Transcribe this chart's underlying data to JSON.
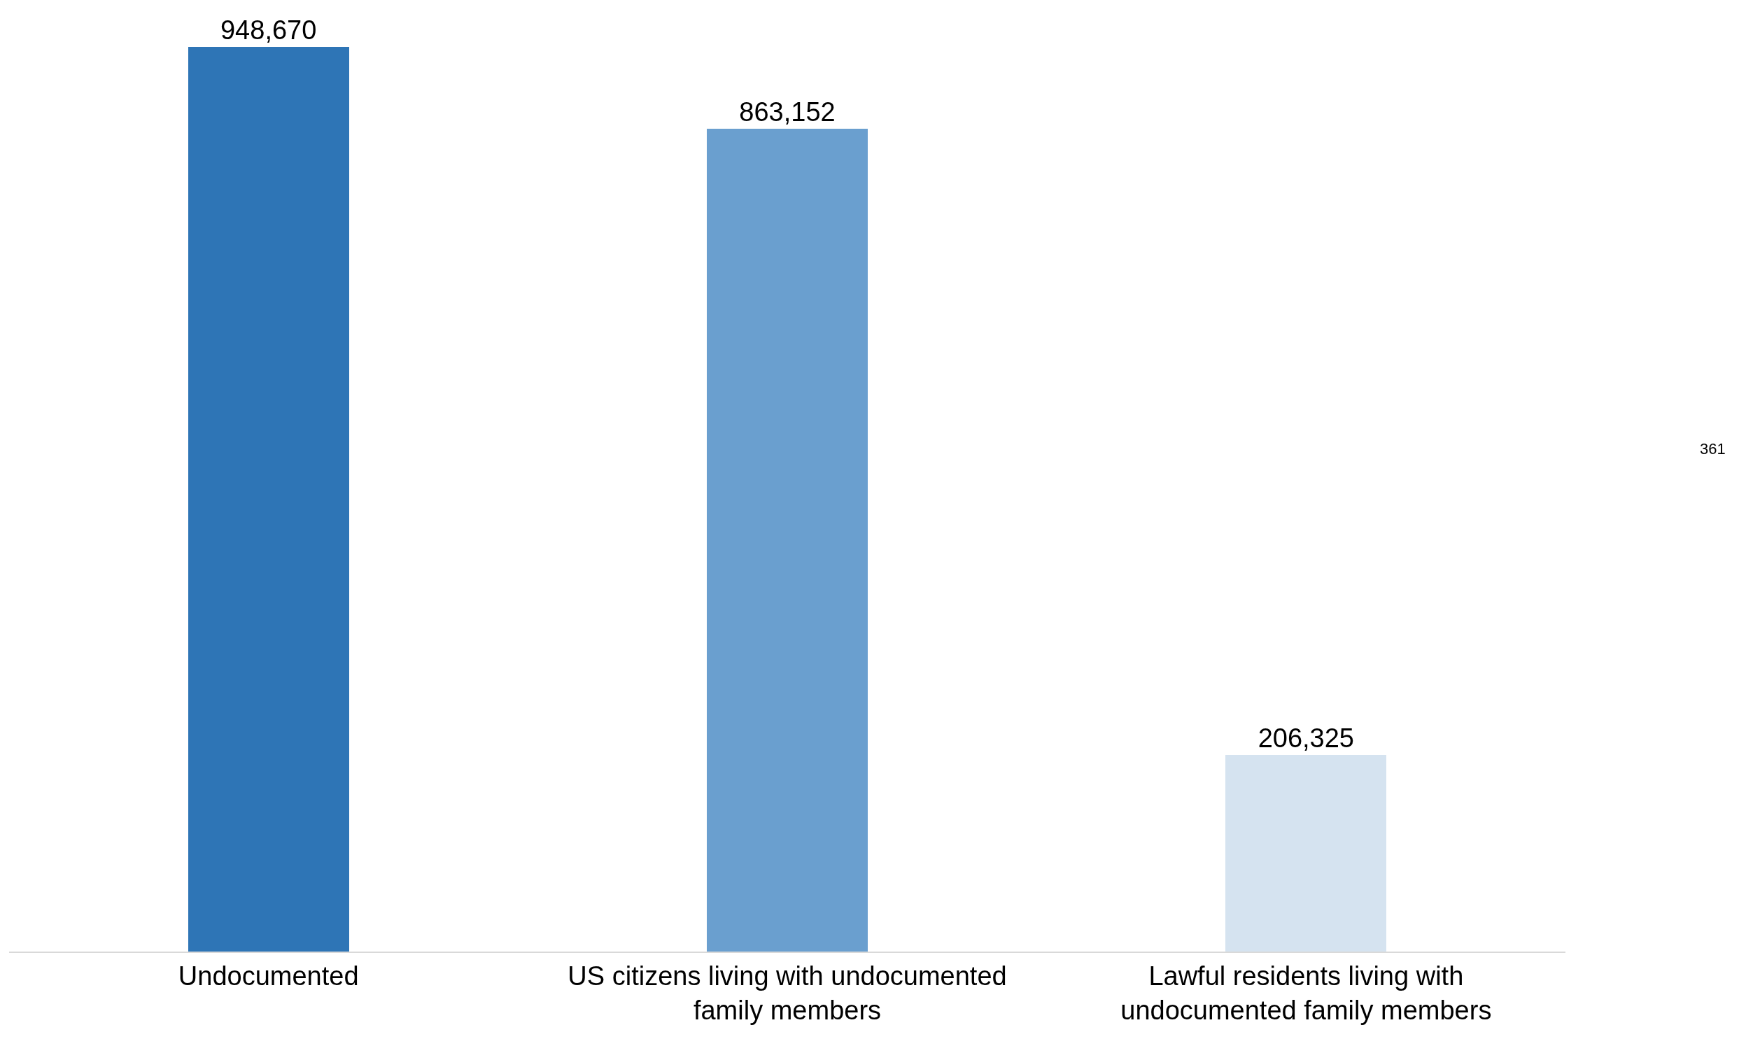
{
  "chart_data": {
    "type": "bar",
    "categories": [
      "Undocumented",
      "US citizens living with undocumented family members",
      "Lawful residents living with undocumented family members"
    ],
    "values": [
      948670,
      863152,
      206325
    ],
    "colors": [
      "#2e75b6",
      "#6a9fcf",
      "#d5e3f0"
    ],
    "value_labels": [
      "948,670",
      "863,152",
      "206,325"
    ],
    "grid": false,
    "tick_labels": "x",
    "annotations": [
      "361"
    ]
  }
}
